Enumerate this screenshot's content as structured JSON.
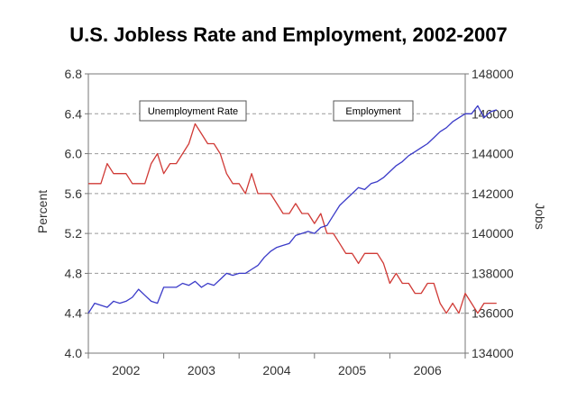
{
  "chart_data": {
    "type": "line",
    "title": "U.S. Jobless Rate and Employment, 2002-2007",
    "ylabel_left": "Percent",
    "ylabel_right": "Jobs",
    "x_tick_labels": [
      "2002",
      "2003",
      "2004",
      "2005",
      "2006"
    ],
    "x_range": [
      2002.0,
      2007.0
    ],
    "ylim_left": [
      4.0,
      6.8
    ],
    "ylim_right": [
      134000,
      148000
    ],
    "yticks_left": [
      "4.0",
      "4.4",
      "4.8",
      "5.2",
      "5.6",
      "6.0",
      "6.4",
      "6.8"
    ],
    "yticks_right": [
      "134000",
      "136000",
      "138000",
      "140000",
      "142000",
      "144000",
      "146000",
      "148000"
    ],
    "grid": true,
    "annotations": [
      "Unemployment Rate",
      "Employment"
    ],
    "series": [
      {
        "name": "Unemployment Rate",
        "axis": "left",
        "color": "#d03a36",
        "points": [
          [
            "2002-01",
            5.7
          ],
          [
            "2002-02",
            5.7
          ],
          [
            "2002-03",
            5.7
          ],
          [
            "2002-04",
            5.9
          ],
          [
            "2002-05",
            5.8
          ],
          [
            "2002-06",
            5.8
          ],
          [
            "2002-07",
            5.8
          ],
          [
            "2002-08",
            5.7
          ],
          [
            "2002-09",
            5.7
          ],
          [
            "2002-10",
            5.7
          ],
          [
            "2002-11",
            5.9
          ],
          [
            "2002-12",
            6.0
          ],
          [
            "2003-01",
            5.8
          ],
          [
            "2003-02",
            5.9
          ],
          [
            "2003-03",
            5.9
          ],
          [
            "2003-04",
            6.0
          ],
          [
            "2003-05",
            6.1
          ],
          [
            "2003-06",
            6.3
          ],
          [
            "2003-07",
            6.2
          ],
          [
            "2003-08",
            6.1
          ],
          [
            "2003-09",
            6.1
          ],
          [
            "2003-10",
            6.0
          ],
          [
            "2003-11",
            5.8
          ],
          [
            "2003-12",
            5.7
          ],
          [
            "2004-01",
            5.7
          ],
          [
            "2004-02",
            5.6
          ],
          [
            "2004-03",
            5.8
          ],
          [
            "2004-04",
            5.6
          ],
          [
            "2004-05",
            5.6
          ],
          [
            "2004-06",
            5.6
          ],
          [
            "2004-07",
            5.5
          ],
          [
            "2004-08",
            5.4
          ],
          [
            "2004-09",
            5.4
          ],
          [
            "2004-10",
            5.5
          ],
          [
            "2004-11",
            5.4
          ],
          [
            "2004-12",
            5.4
          ],
          [
            "2005-01",
            5.3
          ],
          [
            "2005-02",
            5.4
          ],
          [
            "2005-03",
            5.2
          ],
          [
            "2005-04",
            5.2
          ],
          [
            "2005-05",
            5.1
          ],
          [
            "2005-06",
            5.0
          ],
          [
            "2005-07",
            5.0
          ],
          [
            "2005-08",
            4.9
          ],
          [
            "2005-09",
            5.0
          ],
          [
            "2005-10",
            5.0
          ],
          [
            "2005-11",
            5.0
          ],
          [
            "2005-12",
            4.9
          ],
          [
            "2006-01",
            4.7
          ],
          [
            "2006-02",
            4.8
          ],
          [
            "2006-03",
            4.7
          ],
          [
            "2006-04",
            4.7
          ],
          [
            "2006-05",
            4.6
          ],
          [
            "2006-06",
            4.6
          ],
          [
            "2006-07",
            4.7
          ],
          [
            "2006-08",
            4.7
          ],
          [
            "2006-09",
            4.5
          ],
          [
            "2006-10",
            4.4
          ],
          [
            "2006-11",
            4.5
          ],
          [
            "2006-12",
            4.4
          ],
          [
            "2007-01",
            4.6
          ],
          [
            "2007-02",
            4.5
          ],
          [
            "2007-03",
            4.4
          ],
          [
            "2007-04",
            4.5
          ],
          [
            "2007-05",
            4.5
          ],
          [
            "2007-06",
            4.5
          ]
        ]
      },
      {
        "name": "Employment",
        "axis": "right",
        "color": "#3a3ac8",
        "points": [
          [
            "2002-01",
            136000
          ],
          [
            "2002-02",
            136500
          ],
          [
            "2002-03",
            136400
          ],
          [
            "2002-04",
            136300
          ],
          [
            "2002-05",
            136600
          ],
          [
            "2002-06",
            136500
          ],
          [
            "2002-07",
            136600
          ],
          [
            "2002-08",
            136800
          ],
          [
            "2002-09",
            137200
          ],
          [
            "2002-10",
            136900
          ],
          [
            "2002-11",
            136600
          ],
          [
            "2002-12",
            136500
          ],
          [
            "2003-01",
            137300
          ],
          [
            "2003-02",
            137300
          ],
          [
            "2003-03",
            137300
          ],
          [
            "2003-04",
            137500
          ],
          [
            "2003-05",
            137400
          ],
          [
            "2003-06",
            137600
          ],
          [
            "2003-07",
            137300
          ],
          [
            "2003-08",
            137500
          ],
          [
            "2003-09",
            137400
          ],
          [
            "2003-10",
            137700
          ],
          [
            "2003-11",
            138000
          ],
          [
            "2003-12",
            137900
          ],
          [
            "2004-01",
            138000
          ],
          [
            "2004-02",
            138000
          ],
          [
            "2004-03",
            138200
          ],
          [
            "2004-04",
            138400
          ],
          [
            "2004-05",
            138800
          ],
          [
            "2004-06",
            139100
          ],
          [
            "2004-07",
            139300
          ],
          [
            "2004-08",
            139400
          ],
          [
            "2004-09",
            139500
          ],
          [
            "2004-10",
            139900
          ],
          [
            "2004-11",
            140000
          ],
          [
            "2004-12",
            140100
          ],
          [
            "2005-01",
            140000
          ],
          [
            "2005-02",
            140300
          ],
          [
            "2005-03",
            140400
          ],
          [
            "2005-04",
            140900
          ],
          [
            "2005-05",
            141400
          ],
          [
            "2005-06",
            141700
          ],
          [
            "2005-07",
            142000
          ],
          [
            "2005-08",
            142300
          ],
          [
            "2005-09",
            142200
          ],
          [
            "2005-10",
            142500
          ],
          [
            "2005-11",
            142600
          ],
          [
            "2005-12",
            142800
          ],
          [
            "2006-01",
            143100
          ],
          [
            "2006-02",
            143400
          ],
          [
            "2006-03",
            143600
          ],
          [
            "2006-04",
            143900
          ],
          [
            "2006-05",
            144100
          ],
          [
            "2006-06",
            144300
          ],
          [
            "2006-07",
            144500
          ],
          [
            "2006-08",
            144800
          ],
          [
            "2006-09",
            145100
          ],
          [
            "2006-10",
            145300
          ],
          [
            "2006-11",
            145600
          ],
          [
            "2006-12",
            145800
          ],
          [
            "2007-01",
            146000
          ],
          [
            "2007-02",
            146000
          ],
          [
            "2007-03",
            146400
          ],
          [
            "2007-04",
            145800
          ],
          [
            "2007-05",
            146100
          ],
          [
            "2007-06",
            146200
          ]
        ]
      }
    ]
  }
}
